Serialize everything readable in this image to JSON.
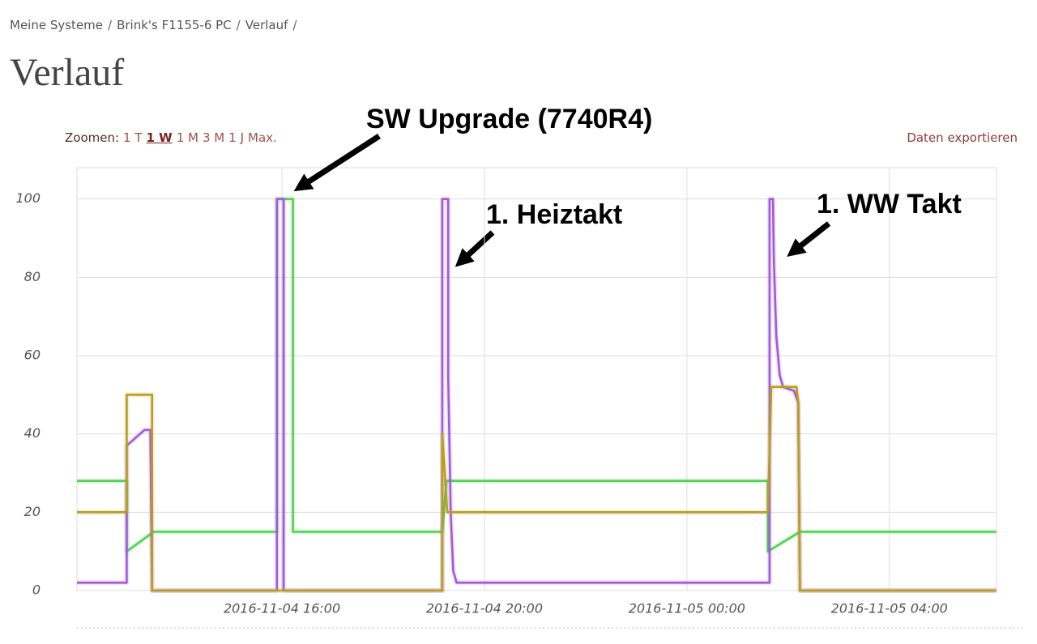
{
  "breadcrumb": {
    "items": [
      "Meine Systeme",
      "Brink's F1155-6 PC",
      "Verlauf"
    ],
    "separator": "/"
  },
  "title": "Verlauf",
  "zoom": {
    "label": "Zoomen:",
    "options": [
      "1 T",
      "1 W",
      "1 M",
      "3 M",
      "1 J",
      "Max."
    ]
  },
  "export": "Daten exportieren",
  "chart_data": {
    "type": "line",
    "annotations": [
      "SW Upgrade (7740R4)",
      "1. Heiztakt",
      "1. WW Takt"
    ],
    "xlim": [
      "2016-11-04 11:57",
      "2016-11-05 06:07"
    ],
    "xticks": [
      "2016-11-04 16:00",
      "2016-11-04 20:00",
      "2016-11-05 00:00",
      "2016-11-05 04:00"
    ],
    "ylim": [
      0,
      108
    ],
    "yticks": [
      0,
      20,
      40,
      60,
      80,
      100
    ],
    "grid": true,
    "series": [
      {
        "color": "#4fd24f",
        "x": [
          "2016-11-04 11:57",
          "2016-11-04 12:56",
          "2016-11-04 12:56",
          "2016-11-04 13:28",
          "2016-11-04 15:54",
          "2016-11-04 15:54",
          "2016-11-04 16:13",
          "2016-11-04 16:13",
          "2016-11-04 19:10",
          "2016-11-04 19:15",
          "2016-11-05 01:36",
          "2016-11-05 01:36",
          "2016-11-05 02:14",
          "2016-11-05 06:07"
        ],
        "values": [
          28,
          28,
          10,
          15,
          15,
          100,
          100,
          15,
          15,
          28,
          28,
          10,
          15,
          15
        ]
      },
      {
        "color": "#a35ad8",
        "x": [
          "2016-11-04 11:57",
          "2016-11-04 12:56",
          "2016-11-04 12:56",
          "2016-11-04 13:17",
          "2016-11-04 13:24",
          "2016-11-04 13:26",
          "2016-11-04 15:54",
          "2016-11-04 15:54",
          "2016-11-04 16:02",
          "2016-11-04 16:02",
          "2016-11-04 19:10",
          "2016-11-04 19:10",
          "2016-11-04 19:17",
          "2016-11-04 19:17",
          "2016-11-04 19:20",
          "2016-11-04 19:23",
          "2016-11-04 19:27",
          "2016-11-05 01:38",
          "2016-11-05 01:38",
          "2016-11-05 01:42",
          "2016-11-05 01:43",
          "2016-11-05 01:46",
          "2016-11-05 01:50",
          "2016-11-05 01:54",
          "2016-11-05 02:07",
          "2016-11-05 02:12",
          "2016-11-05 02:14",
          "2016-11-05 06:07"
        ],
        "values": [
          2,
          2,
          37,
          41,
          41,
          0,
          0,
          100,
          100,
          0,
          0,
          100,
          100,
          55,
          20,
          5,
          2,
          2,
          100,
          100,
          85,
          65,
          55,
          52,
          51,
          48,
          0,
          0
        ]
      },
      {
        "color": "#b89d1e",
        "x": [
          "2016-11-04 11:57",
          "2016-11-04 12:56",
          "2016-11-04 12:56",
          "2016-11-04 13:26",
          "2016-11-04 13:26",
          "2016-11-04 19:10",
          "2016-11-04 19:10",
          "2016-11-04 19:16",
          "2016-11-05 01:36",
          "2016-11-05 01:40",
          "2016-11-05 02:10",
          "2016-11-05 02:12",
          "2016-11-05 02:14",
          "2016-11-05 06:07"
        ],
        "values": [
          20,
          20,
          50,
          50,
          0,
          0,
          40,
          20,
          20,
          52,
          52,
          48,
          0,
          0
        ]
      }
    ]
  }
}
